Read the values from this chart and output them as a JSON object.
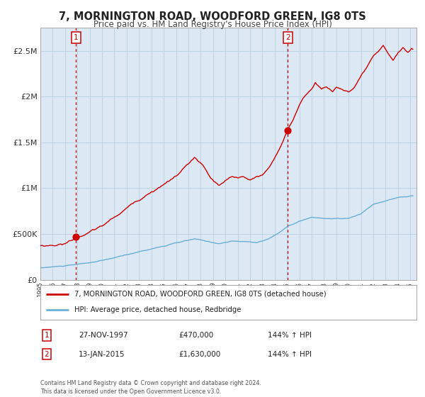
{
  "title": "7, MORNINGTON ROAD, WOODFORD GREEN, IG8 0TS",
  "subtitle": "Price paid vs. HM Land Registry's House Price Index (HPI)",
  "legend_line1": "7, MORNINGTON ROAD, WOODFORD GREEN, IG8 0TS (detached house)",
  "legend_line2": "HPI: Average price, detached house, Redbridge",
  "sale1_label": "1",
  "sale1_date": "27-NOV-1997",
  "sale1_price": "£470,000",
  "sale1_hpi": "144% ↑ HPI",
  "sale1_year": 1997.9,
  "sale1_value": 470000,
  "sale2_label": "2",
  "sale2_date": "13-JAN-2015",
  "sale2_price": "£1,630,000",
  "sale2_hpi": "144% ↑ HPI",
  "sale2_year": 2015.05,
  "sale2_value": 1630000,
  "footer": "Contains HM Land Registry data © Crown copyright and database right 2024.\nThis data is licensed under the Open Government Licence v3.0.",
  "hpi_color": "#6baed6",
  "sale_color": "#cc0000",
  "chart_bg_color": "#dce9f5",
  "background_color": "#ffffff",
  "ylim": [
    0,
    2750000
  ],
  "xlim_start": 1995.0,
  "xlim_end": 2025.5,
  "yticks": [
    0,
    500000,
    1000000,
    1500000,
    2000000,
    2500000
  ],
  "ytick_labels": [
    "£0",
    "£500K",
    "£1M",
    "£1.5M",
    "£2M",
    "£2.5M"
  ]
}
